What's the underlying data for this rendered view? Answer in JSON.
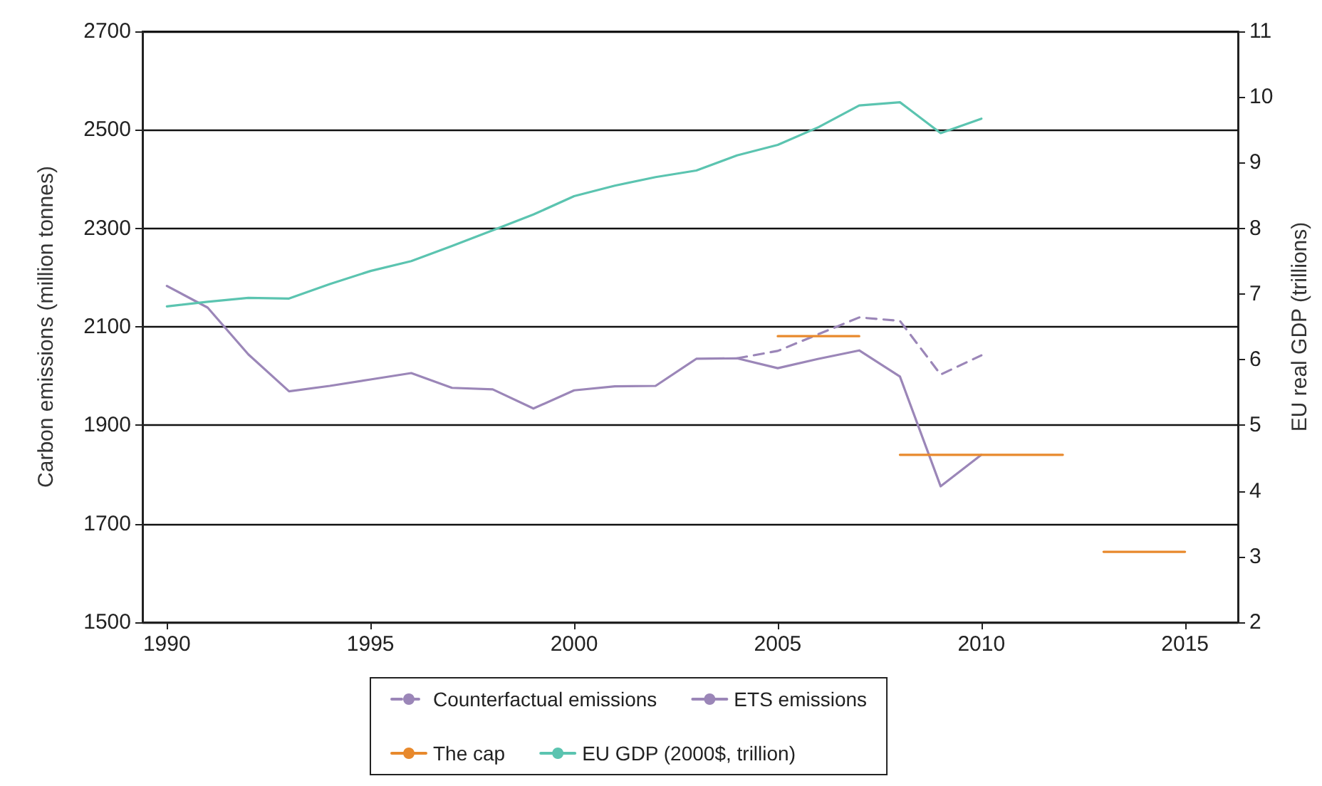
{
  "chart_data": {
    "type": "line",
    "ylabel": "Carbon emissions (million tonnes)",
    "y2label": "EU real GDP (trillions)",
    "x": [
      1990,
      1991,
      1992,
      1993,
      1994,
      1995,
      1996,
      1997,
      1998,
      1999,
      2000,
      2001,
      2002,
      2003,
      2004,
      2005,
      2006,
      2007,
      2008,
      2009,
      2010
    ],
    "xlim": [
      1989.4,
      2016.3
    ],
    "xticks": [
      1990,
      1995,
      2000,
      2005,
      2010,
      2015
    ],
    "ylim": [
      1500,
      2700
    ],
    "yticks": [
      1500,
      1700,
      1900,
      2100,
      2300,
      2500,
      2700
    ],
    "y2lim": [
      2,
      11
    ],
    "y2ticks": [
      2,
      3,
      4,
      5,
      6,
      7,
      8,
      9,
      10,
      11
    ],
    "grid": "y",
    "legend": "bottom",
    "marker": "none",
    "series": [
      {
        "name": "Counterfactual emissions",
        "color": "#9b86b8",
        "line_style": "dashed",
        "x": [
          2004,
          2005,
          2006,
          2007,
          2008,
          2009,
          2010
        ],
        "values": [
          2036,
          2051,
          2085,
          2119,
          2112,
          2003,
          2042
        ]
      },
      {
        "name": "ETS emissions",
        "color": "#9b86b8",
        "values": [
          2183,
          2139,
          2044,
          1969,
          1980,
          1993,
          2006,
          1976,
          1973,
          1934,
          1971,
          1979,
          1980,
          2035,
          2036,
          2016,
          2035,
          2052,
          1999,
          1776,
          1840
        ]
      },
      {
        "name": "The cap",
        "color": "#e8892c",
        "x": [
          2005,
          2007,
          null,
          2008,
          2012,
          null,
          2013,
          2015
        ],
        "values": [
          2081,
          2081,
          null,
          1840,
          1840,
          null,
          1643,
          1643
        ]
      },
      {
        "name": "EU GDP (2000$, trillion)",
        "color": "#5bc4b0",
        "axis": "y2",
        "values": [
          6.81,
          6.88,
          6.94,
          6.93,
          7.15,
          7.35,
          7.5,
          7.73,
          7.97,
          8.21,
          8.49,
          8.65,
          8.78,
          8.88,
          9.11,
          9.27,
          9.54,
          9.87,
          9.92,
          9.45,
          9.67
        ]
      }
    ]
  }
}
